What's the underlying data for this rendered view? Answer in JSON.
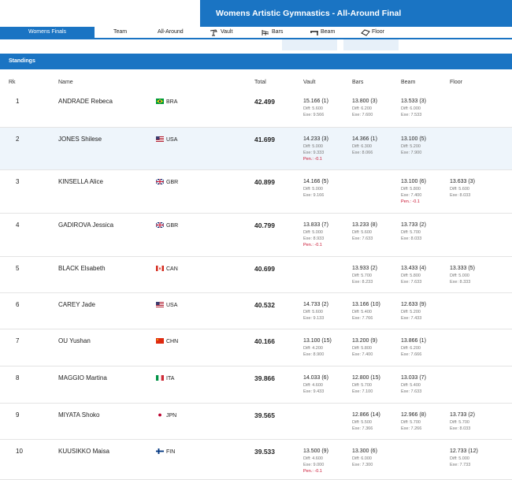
{
  "header": {
    "title": "Womens Artistic Gymnastics - All-Around Final"
  },
  "tabs": [
    {
      "label": "Womens Finals",
      "icon": ""
    },
    {
      "label": "Team",
      "icon": ""
    },
    {
      "label": "All-Around",
      "icon": ""
    },
    {
      "label": "Vault",
      "icon": "vault-icon"
    },
    {
      "label": "Bars",
      "icon": "bars-icon"
    },
    {
      "label": "Beam",
      "icon": "beam-icon"
    },
    {
      "label": "Floor",
      "icon": "floor-icon"
    }
  ],
  "standings_label": "Standings",
  "columns": {
    "rk": "Rk",
    "name": "Name",
    "total": "Total",
    "vault": "Vault",
    "bars": "Bars",
    "beam": "Beam",
    "floor": "Floor"
  },
  "colors": {
    "accent": "#1a74c3",
    "penalty": "#c8102e",
    "row_alt": "#eef5fb"
  },
  "rows": [
    {
      "rk": "1",
      "name": "ANDRADE Rebeca",
      "country": "BRA",
      "total": "42.499",
      "vault": {
        "score": "15.166 (1)",
        "diff": "Diff: 5.600",
        "exe": "Exe: 9.566",
        "pen": ""
      },
      "bars": {
        "score": "13.800 (3)",
        "diff": "Diff: 6.200",
        "exe": "Exe: 7.600",
        "pen": ""
      },
      "beam": {
        "score": "13.533 (3)",
        "diff": "Diff: 6.000",
        "exe": "Exe: 7.533",
        "pen": ""
      },
      "floor": {
        "score": "",
        "diff": "",
        "exe": "",
        "pen": ""
      }
    },
    {
      "rk": "2",
      "name": "JONES Shilese",
      "country": "USA",
      "total": "41.699",
      "vault": {
        "score": "14.233 (3)",
        "diff": "Diff: 5.000",
        "exe": "Exe: 9.333",
        "pen": "Pen.: -0.1"
      },
      "bars": {
        "score": "14.366 (1)",
        "diff": "Diff: 6.300",
        "exe": "Exe: 8.066",
        "pen": ""
      },
      "beam": {
        "score": "13.100 (5)",
        "diff": "Diff: 5.200",
        "exe": "Exe: 7.900",
        "pen": ""
      },
      "floor": {
        "score": "",
        "diff": "",
        "exe": "",
        "pen": ""
      }
    },
    {
      "rk": "3",
      "name": "KINSELLA Alice",
      "country": "GBR",
      "total": "40.899",
      "vault": {
        "score": "14.166 (5)",
        "diff": "Diff: 5.000",
        "exe": "Exe: 9.166",
        "pen": ""
      },
      "bars": {
        "score": "",
        "diff": "",
        "exe": "",
        "pen": ""
      },
      "beam": {
        "score": "13.100 (6)",
        "diff": "Diff: 5.800",
        "exe": "Exe: 7.400",
        "pen": "Pen.: -0.1"
      },
      "floor": {
        "score": "13.633 (3)",
        "diff": "Diff: 5.600",
        "exe": "Exe: 8.033",
        "pen": ""
      }
    },
    {
      "rk": "4",
      "name": "GADIROVA Jessica",
      "country": "GBR",
      "total": "40.799",
      "vault": {
        "score": "13.833 (7)",
        "diff": "Diff: 5.000",
        "exe": "Exe: 8.933",
        "pen": "Pen.: -0.1"
      },
      "bars": {
        "score": "13.233 (8)",
        "diff": "Diff: 5.600",
        "exe": "Exe: 7.633",
        "pen": ""
      },
      "beam": {
        "score": "13.733 (2)",
        "diff": "Diff: 5.700",
        "exe": "Exe: 8.033",
        "pen": ""
      },
      "floor": {
        "score": "",
        "diff": "",
        "exe": "",
        "pen": ""
      }
    },
    {
      "rk": "5",
      "name": "BLACK Elsabeth",
      "country": "CAN",
      "total": "40.699",
      "vault": {
        "score": "",
        "diff": "",
        "exe": "",
        "pen": ""
      },
      "bars": {
        "score": "13.933 (2)",
        "diff": "Diff: 5.700",
        "exe": "Exe: 8.233",
        "pen": ""
      },
      "beam": {
        "score": "13.433 (4)",
        "diff": "Diff: 5.800",
        "exe": "Exe: 7.633",
        "pen": ""
      },
      "floor": {
        "score": "13.333 (5)",
        "diff": "Diff: 5.000",
        "exe": "Exe: 8.333",
        "pen": ""
      }
    },
    {
      "rk": "6",
      "name": "CAREY Jade",
      "country": "USA",
      "total": "40.532",
      "vault": {
        "score": "14.733 (2)",
        "diff": "Diff: 5.600",
        "exe": "Exe: 9.133",
        "pen": ""
      },
      "bars": {
        "score": "13.166 (10)",
        "diff": "Diff: 5.400",
        "exe": "Exe: 7.766",
        "pen": ""
      },
      "beam": {
        "score": "12.633 (9)",
        "diff": "Diff: 5.200",
        "exe": "Exe: 7.433",
        "pen": ""
      },
      "floor": {
        "score": "",
        "diff": "",
        "exe": "",
        "pen": ""
      }
    },
    {
      "rk": "7",
      "name": "OU Yushan",
      "country": "CHN",
      "total": "40.166",
      "vault": {
        "score": "13.100 (15)",
        "diff": "Diff: 4.200",
        "exe": "Exe: 8.900",
        "pen": ""
      },
      "bars": {
        "score": "13.200 (9)",
        "diff": "Diff: 5.800",
        "exe": "Exe: 7.400",
        "pen": ""
      },
      "beam": {
        "score": "13.866 (1)",
        "diff": "Diff: 6.200",
        "exe": "Exe: 7.666",
        "pen": ""
      },
      "floor": {
        "score": "",
        "diff": "",
        "exe": "",
        "pen": ""
      }
    },
    {
      "rk": "8",
      "name": "MAGGIO Martina",
      "country": "ITA",
      "total": "39.866",
      "vault": {
        "score": "14.033 (6)",
        "diff": "Diff: 4.600",
        "exe": "Exe: 9.433",
        "pen": ""
      },
      "bars": {
        "score": "12.800 (15)",
        "diff": "Diff: 5.700",
        "exe": "Exe: 7.100",
        "pen": ""
      },
      "beam": {
        "score": "13.033 (7)",
        "diff": "Diff: 5.400",
        "exe": "Exe: 7.633",
        "pen": ""
      },
      "floor": {
        "score": "",
        "diff": "",
        "exe": "",
        "pen": ""
      }
    },
    {
      "rk": "9",
      "name": "MIYATA Shoko",
      "country": "JPN",
      "total": "39.565",
      "vault": {
        "score": "",
        "diff": "",
        "exe": "",
        "pen": ""
      },
      "bars": {
        "score": "12.866 (14)",
        "diff": "Diff: 5.500",
        "exe": "Exe: 7.366",
        "pen": ""
      },
      "beam": {
        "score": "12.966 (8)",
        "diff": "Diff: 5.700",
        "exe": "Exe: 7.266",
        "pen": ""
      },
      "floor": {
        "score": "13.733 (2)",
        "diff": "Diff: 5.700",
        "exe": "Exe: 8.033",
        "pen": ""
      }
    },
    {
      "rk": "10",
      "name": "KUUSIKKO Maisa",
      "country": "FIN",
      "total": "39.533",
      "vault": {
        "score": "13.500 (9)",
        "diff": "Diff: 4.600",
        "exe": "Exe: 9.000",
        "pen": "Pen.: -0.1"
      },
      "bars": {
        "score": "13.300 (6)",
        "diff": "Diff: 6.000",
        "exe": "Exe: 7.300",
        "pen": ""
      },
      "beam": {
        "score": "",
        "diff": "",
        "exe": "",
        "pen": ""
      },
      "floor": {
        "score": "12.733 (12)",
        "diff": "Diff: 5.000",
        "exe": "Exe: 7.733",
        "pen": ""
      }
    }
  ]
}
